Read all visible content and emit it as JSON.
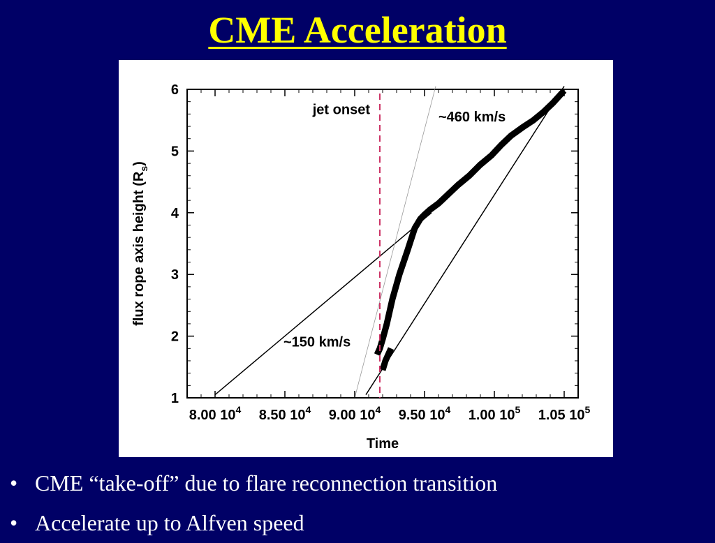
{
  "slide": {
    "title": "CME Acceleration",
    "bullets": [
      "CME “take-off” due to flare reconnection transition",
      "Accelerate up to Alfven speed"
    ],
    "bullet_symbol": "•",
    "colors": {
      "background": "#000066",
      "title": "#ffff00",
      "text": "#ffffff",
      "jet_onset": "#cc3366"
    }
  },
  "chart_data": {
    "type": "line",
    "title": "",
    "xlabel": "Time",
    "ylabel": "flux rope axis height (Rs)",
    "ylabel_main": "flux rope axis height (R",
    "ylabel_sub": "s",
    "ylabel_close": ")",
    "xlim": [
      78000,
      106000
    ],
    "ylim": [
      1,
      6
    ],
    "x_ticks": [
      {
        "value": 80000,
        "mant": "8.00 10",
        "exp": "4"
      },
      {
        "value": 85000,
        "mant": "8.50 10",
        "exp": "4"
      },
      {
        "value": 90000,
        "mant": "9.00 10",
        "exp": "4"
      },
      {
        "value": 95000,
        "mant": "9.50 10",
        "exp": "4"
      },
      {
        "value": 100000,
        "mant": "1.00 10",
        "exp": "5"
      },
      {
        "value": 105000,
        "mant": "1.05 10",
        "exp": "5"
      }
    ],
    "y_ticks": [
      1,
      2,
      3,
      4,
      5,
      6
    ],
    "grid": false,
    "series": [
      {
        "style": "thick",
        "x": [
          91600,
          91800,
          92000,
          92300,
          92700,
          93200,
          93800,
          94300,
          94700,
          95000,
          95400,
          96000,
          96700,
          97400,
          98200,
          99000,
          99800,
          100500,
          101200,
          102000,
          102800,
          103500,
          104200,
          105000
        ],
        "y": [
          1.7,
          1.8,
          1.95,
          2.2,
          2.6,
          3.0,
          3.4,
          3.75,
          3.9,
          3.97,
          4.05,
          4.15,
          4.3,
          4.45,
          4.6,
          4.78,
          4.93,
          5.1,
          5.25,
          5.38,
          5.5,
          5.63,
          5.78,
          5.98
        ]
      },
      {
        "style": "thick",
        "x": [
          92000,
          92200,
          92400,
          92600
        ],
        "y": [
          1.45,
          1.6,
          1.7,
          1.8
        ]
      }
    ],
    "fit_lines": [
      {
        "x": [
          80000,
          95500
        ],
        "y": [
          1.05,
          4.0
        ]
      },
      {
        "x": [
          90800,
          105000
        ],
        "y": [
          1.05,
          6.05
        ]
      },
      {
        "x": [
          90000,
          95800
        ],
        "y": [
          1.0,
          6.05
        ]
      }
    ],
    "annotations": [
      {
        "text": "jet onset",
        "x": 91800,
        "y": 5.6
      },
      {
        "text": "~460 km/s",
        "x": 96000,
        "y": 5.48
      },
      {
        "text": "~150 km/s",
        "x": 84900,
        "y": 1.83
      }
    ],
    "vertical_line": {
      "x": 91800,
      "label": "jet onset"
    }
  }
}
